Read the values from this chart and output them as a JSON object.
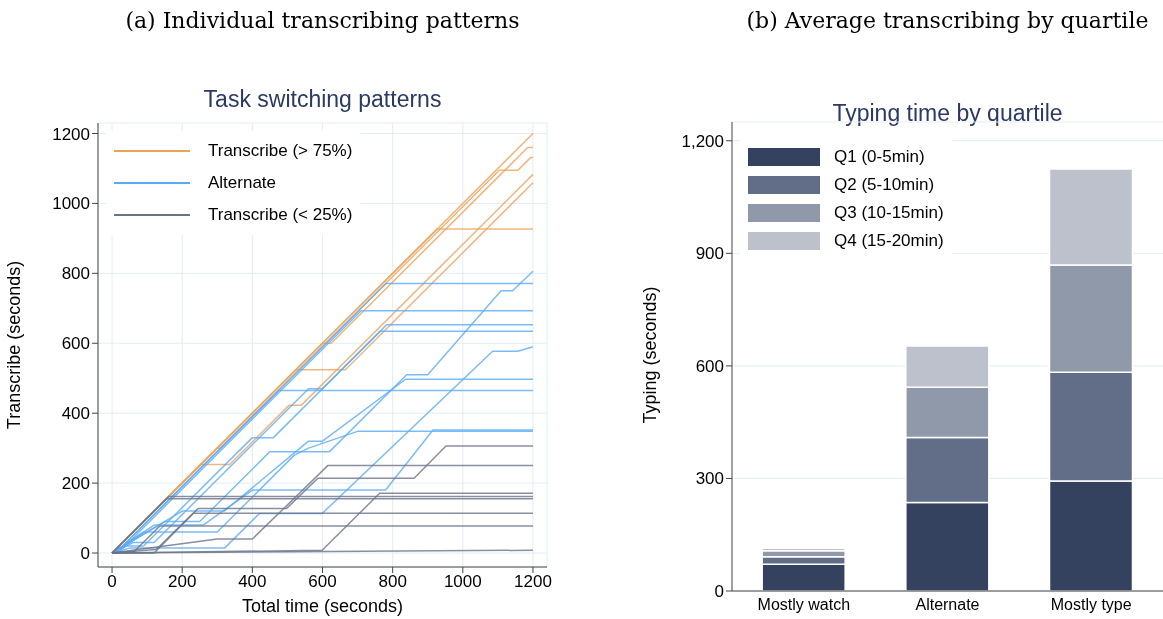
{
  "chart_data": [
    {
      "type": "line",
      "annotations": [
        "(a) Individual transcribing patterns"
      ],
      "title": "Task switching patterns",
      "xlabel": "Total time (seconds)",
      "ylabel": "Transcribe (seconds)",
      "xlim": [
        -40,
        1240
      ],
      "ylim": [
        -40,
        1230
      ],
      "xticks": [
        0,
        200,
        400,
        600,
        800,
        1000,
        1200
      ],
      "yticks": [
        0,
        200,
        400,
        600,
        800,
        1000,
        1200
      ],
      "grid": true,
      "legend": "top left",
      "series": [
        {
          "name": "Transcribe (> 75%)",
          "color": "#eda25a",
          "x": [
            0,
            1200
          ],
          "values": [
            0,
            1200
          ]
        },
        {
          "color": "#eda25a",
          "x": [
            0,
            600,
            625,
            1185,
            1200
          ],
          "values": [
            0,
            600,
            600,
            1160,
            1160
          ]
        },
        {
          "color": "#eda25a",
          "x": [
            0,
            300,
            309,
            1104,
            1157,
            1193,
            1200
          ],
          "values": [
            0,
            300,
            300,
            1095,
            1095,
            1131,
            1131
          ]
        },
        {
          "color": "#eda25a",
          "x": [
            0,
            524,
            665,
            1200
          ],
          "values": [
            0,
            524,
            524,
            1059
          ]
        },
        {
          "color": "#eda25a",
          "x": [
            0,
            253,
            335,
            505,
            540,
            1200
          ],
          "values": [
            0,
            253,
            253,
            423,
            423,
            1083
          ]
        },
        {
          "color": "#eda25a",
          "x": [
            0,
            927,
            1200
          ],
          "values": [
            0,
            927,
            927
          ]
        },
        {
          "name": "Alternate",
          "color": "#5aabf5",
          "x": [
            0,
            10,
            781,
            1200
          ],
          "values": [
            0,
            0,
            771,
            771
          ]
        },
        {
          "color": "#5aabf5",
          "x": [
            0,
            17,
            710,
            1200
          ],
          "values": [
            0,
            0,
            693,
            693
          ]
        },
        {
          "color": "#5aabf5",
          "x": [
            0,
            40,
            90,
            400,
            460,
            783,
            1200
          ],
          "values": [
            0,
            20,
            20,
            330,
            330,
            653,
            653
          ]
        },
        {
          "color": "#5aabf5",
          "x": [
            0,
            60,
            120,
            560,
            600,
            764,
            1200
          ],
          "values": [
            0,
            30,
            30,
            470,
            470,
            634,
            634
          ]
        },
        {
          "color": "#5aabf5",
          "x": [
            0,
            150,
            250,
            450,
            620,
            840,
            900,
            1109,
            1142,
            1200
          ],
          "values": [
            0,
            90,
            90,
            290,
            290,
            510,
            510,
            750,
            750,
            806
          ]
        },
        {
          "color": "#5aabf5",
          "x": [
            0,
            50,
            321,
            420,
            599,
            1085,
            1157,
            1200
          ],
          "values": [
            0,
            14,
            14,
            113,
            113,
            577,
            577,
            590
          ]
        },
        {
          "color": "#5aabf5",
          "x": [
            0,
            200,
            320,
            560,
            600,
            837,
            1200
          ],
          "values": [
            0,
            120,
            120,
            320,
            320,
            497,
            497
          ]
        },
        {
          "color": "#5aabf5",
          "x": [
            0,
            10,
            475,
            1200
          ],
          "values": [
            0,
            0,
            465,
            465
          ]
        },
        {
          "color": "#5aabf5",
          "x": [
            0,
            120,
            260,
            400,
            780,
            915,
            1200
          ],
          "values": [
            0,
            80,
            80,
            180,
            180,
            352,
            352
          ]
        },
        {
          "color": "#5aabf5",
          "x": [
            0,
            90,
            300,
            520,
            560,
            700,
            1200
          ],
          "values": [
            0,
            60,
            60,
            280,
            300,
            348,
            348
          ]
        },
        {
          "name": "Transcribe (< 25%)",
          "color": "#6b7388",
          "x": [
            0,
            120,
            245,
            497,
            587,
            861,
            952,
            1200
          ],
          "values": [
            0,
            0,
            127,
            127,
            214,
            214,
            306,
            306
          ]
        },
        {
          "color": "#6b7388",
          "x": [
            0,
            300,
            400,
            615,
            1200
          ],
          "values": [
            0,
            40,
            40,
            250,
            250
          ]
        },
        {
          "color": "#6b7388",
          "x": [
            0,
            599,
            763,
            1200
          ],
          "values": [
            0,
            8,
            171,
            171
          ]
        },
        {
          "color": "#6b7388",
          "x": [
            0,
            162,
            1200
          ],
          "values": [
            0,
            162,
            162
          ]
        },
        {
          "color": "#6b7388",
          "x": [
            0,
            155,
            1200
          ],
          "values": [
            0,
            155,
            155
          ]
        },
        {
          "color": "#6b7388",
          "x": [
            0,
            126,
            231,
            1200
          ],
          "values": [
            0,
            10,
            114,
            114
          ]
        },
        {
          "color": "#6b7388",
          "x": [
            0,
            64,
            136,
            1200
          ],
          "values": [
            0,
            5,
            77,
            77
          ]
        },
        {
          "color": "#6b7388",
          "x": [
            0,
            1200
          ],
          "values": [
            0,
            8
          ]
        }
      ]
    },
    {
      "type": "bar",
      "annotations": [
        "(b) Average transcribing by quartile"
      ],
      "title": "Typing time by quartile",
      "ylabel": "Typing (seconds)",
      "categories": [
        "Mostly watch",
        "Alternate",
        "Mostly type"
      ],
      "stacked": true,
      "ylim": [
        0,
        1250
      ],
      "yticks": [
        0,
        300,
        600,
        900,
        {
          "value": 1200,
          "label": "1,200"
        }
      ],
      "grid": "y",
      "legend": "top left",
      "series": [
        {
          "name": "Q1 (0-5min)",
          "color": "#35425f",
          "values": [
            71,
            236,
            293
          ]
        },
        {
          "name": "Q2 (5-10min)",
          "color": "#626d87",
          "values": [
            20,
            173,
            290
          ]
        },
        {
          "name": "Q3 (10-15min)",
          "color": "#9099aa",
          "values": [
            16,
            134,
            286
          ]
        },
        {
          "name": "Q4 (15-20min)",
          "color": "#bcc1cc",
          "values": [
            7,
            110,
            256
          ]
        }
      ]
    }
  ]
}
